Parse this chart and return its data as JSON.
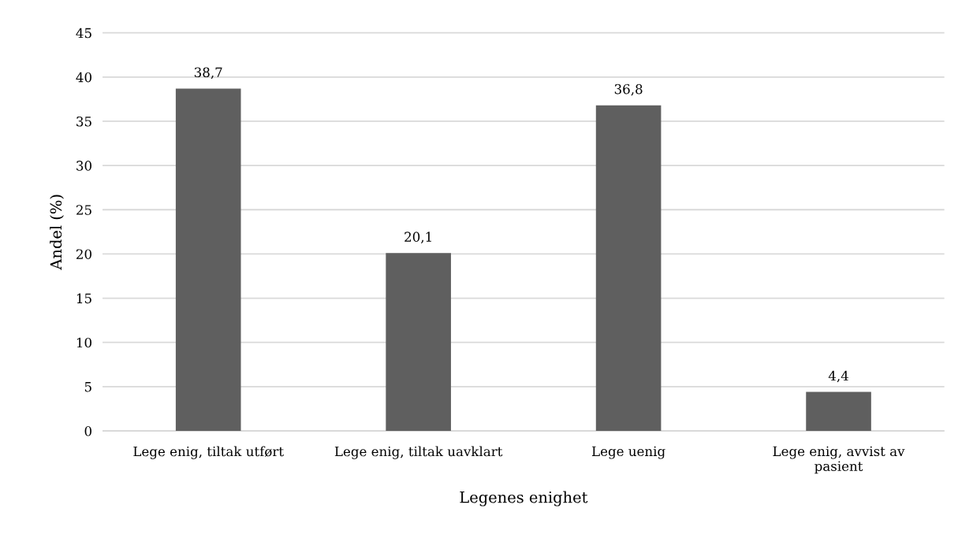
{
  "chart_data": {
    "type": "bar",
    "xlabel": "Legenes enighet",
    "ylabel": "Andel (%)",
    "categories": [
      "Lege enig, tiltak utført",
      "Lege enig, tiltak uavklart",
      "Lege uenig",
      "Lege enig, avvist av\npasient"
    ],
    "values": [
      38.7,
      20.1,
      36.8,
      4.4
    ],
    "color": "#5f5f5f",
    "value_labels": [
      "38,7",
      "20,1",
      "36,8",
      "4,4"
    ],
    "ylim": [
      0,
      45
    ],
    "yticks": [
      0,
      5,
      10,
      15,
      20,
      25,
      30,
      35,
      40,
      45
    ],
    "grid": "y",
    "legend": false
  }
}
